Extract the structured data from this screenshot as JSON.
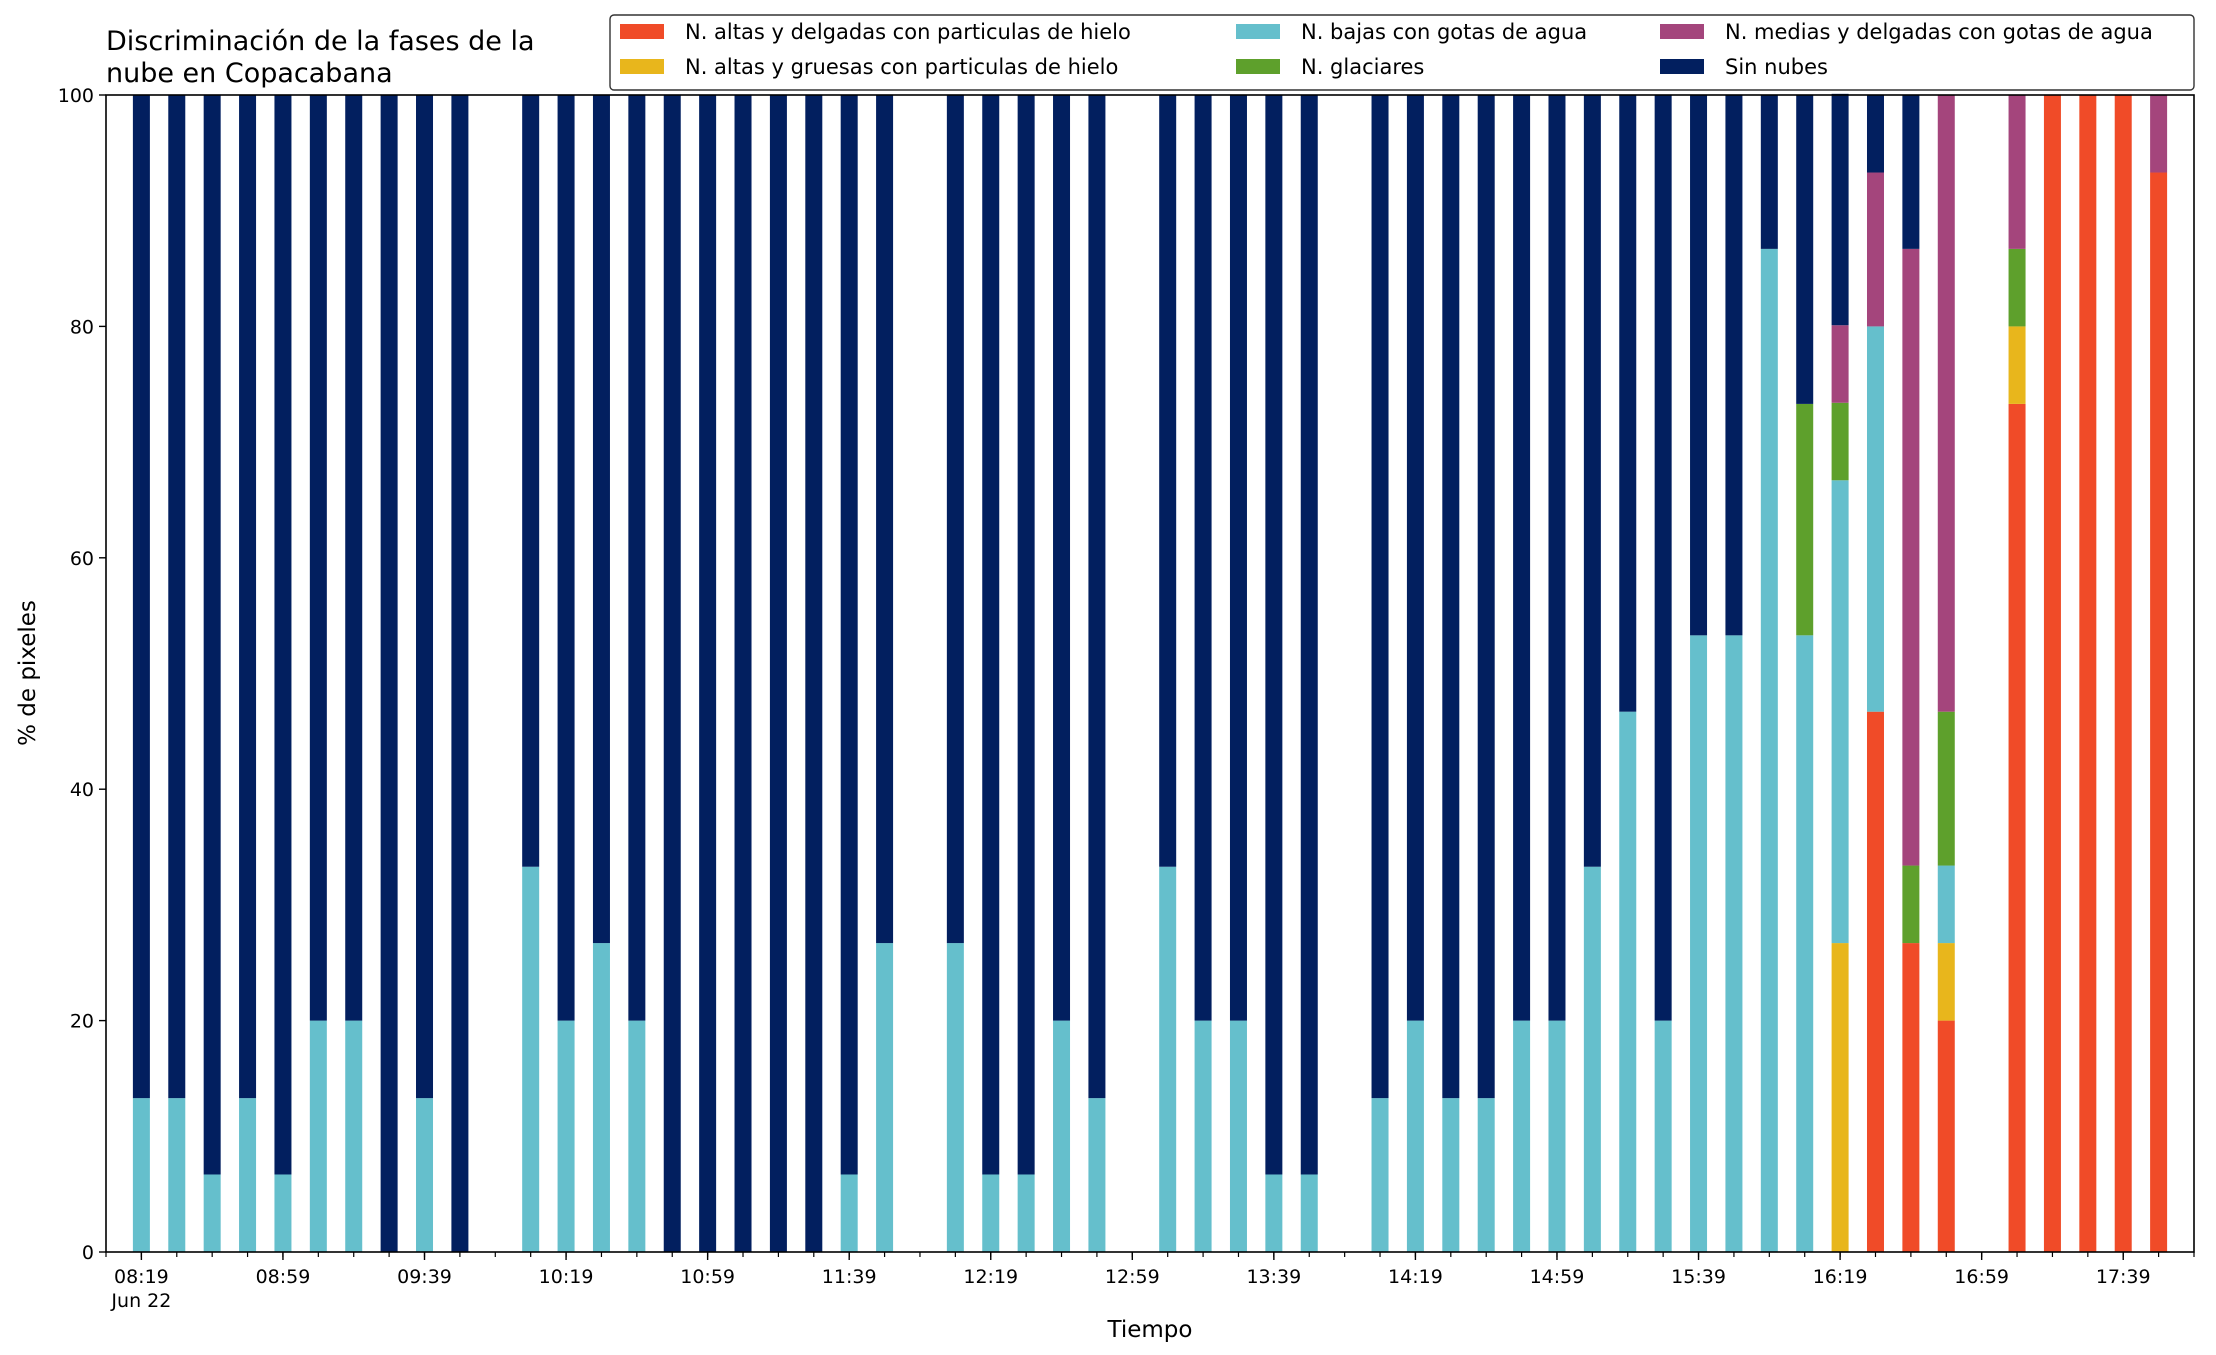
{
  "chart_data": {
    "type": "bar",
    "stacked": true,
    "title": "Discriminación de la fases de la\nnube en Copacabana",
    "xlabel": "Tiempo",
    "ylabel": "% de pixeles",
    "ylim": [
      0,
      100
    ],
    "yticks": [
      0,
      20,
      40,
      60,
      80,
      100
    ],
    "xlim": [
      "08:09",
      "17:59"
    ],
    "x_tick_labels": [
      {
        "time": "08:19",
        "label": "08:19",
        "sublabel": "Jun 22"
      },
      {
        "time": "08:59",
        "label": "08:59"
      },
      {
        "time": "09:39",
        "label": "09:39"
      },
      {
        "time": "10:19",
        "label": "10:19"
      },
      {
        "time": "10:59",
        "label": "10:59"
      },
      {
        "time": "11:39",
        "label": "11:39"
      },
      {
        "time": "12:19",
        "label": "12:19"
      },
      {
        "time": "12:59",
        "label": "12:59"
      },
      {
        "time": "13:39",
        "label": "13:39"
      },
      {
        "time": "14:19",
        "label": "14:19"
      },
      {
        "time": "14:59",
        "label": "14:59"
      },
      {
        "time": "15:39",
        "label": "15:39"
      },
      {
        "time": "16:19",
        "label": "16:19"
      },
      {
        "time": "16:59",
        "label": "16:59"
      },
      {
        "time": "17:39",
        "label": "17:39"
      }
    ],
    "minor_tick_minutes": 10,
    "legend": {
      "placement": "top-right",
      "columns": 3,
      "order": [
        "ice_thin",
        "ice_thick",
        "low_water",
        "glacier",
        "mid_water",
        "clear"
      ]
    },
    "series": [
      {
        "key": "ice_thin",
        "name": "N. altas y delgadas con particulas de hielo",
        "color": "#f04b28"
      },
      {
        "key": "ice_thick",
        "name": "N. altas y gruesas con particulas de hielo",
        "color": "#e8b61c"
      },
      {
        "key": "low_water",
        "name": "N. bajas con gotas de agua",
        "color": "#65bfcc"
      },
      {
        "key": "glacier",
        "name": "N. glaciares",
        "color": "#5ea02c"
      },
      {
        "key": "mid_water",
        "name": "N. medias y delgadas con gotas de agua",
        "color": "#a4457c"
      },
      {
        "key": "clear",
        "name": "Sin nubes",
        "color": "#021f5f"
      }
    ],
    "stack_order": [
      "ice_thin",
      "ice_thick",
      "low_water",
      "glacier",
      "mid_water",
      "clear"
    ],
    "bars": [
      {
        "time": "08:19",
        "low_water": 13.3,
        "clear": 86.7
      },
      {
        "time": "08:29",
        "low_water": 13.3,
        "clear": 86.7
      },
      {
        "time": "08:39",
        "low_water": 6.7,
        "clear": 93.3
      },
      {
        "time": "08:49",
        "low_water": 13.3,
        "clear": 86.7
      },
      {
        "time": "08:59",
        "low_water": 6.7,
        "clear": 93.3
      },
      {
        "time": "09:09",
        "low_water": 20,
        "clear": 80
      },
      {
        "time": "09:19",
        "low_water": 20,
        "clear": 80
      },
      {
        "time": "09:29",
        "clear": 100
      },
      {
        "time": "09:39",
        "low_water": 13.3,
        "clear": 86.7
      },
      {
        "time": "09:49",
        "clear": 100
      },
      {
        "time": "10:09",
        "low_water": 33.3,
        "clear": 66.7
      },
      {
        "time": "10:19",
        "low_water": 20,
        "clear": 80
      },
      {
        "time": "10:29",
        "low_water": 26.7,
        "clear": 73.3
      },
      {
        "time": "10:39",
        "low_water": 20,
        "clear": 80
      },
      {
        "time": "10:49",
        "clear": 100
      },
      {
        "time": "10:59",
        "clear": 100
      },
      {
        "time": "11:09",
        "clear": 100
      },
      {
        "time": "11:19",
        "clear": 100
      },
      {
        "time": "11:29",
        "clear": 100
      },
      {
        "time": "11:39",
        "low_water": 6.7,
        "clear": 93.3
      },
      {
        "time": "11:49",
        "low_water": 26.7,
        "clear": 73.3
      },
      {
        "time": "12:09",
        "low_water": 26.7,
        "clear": 73.3
      },
      {
        "time": "12:19",
        "low_water": 6.7,
        "clear": 93.3
      },
      {
        "time": "12:29",
        "low_water": 6.7,
        "clear": 93.3
      },
      {
        "time": "12:39",
        "low_water": 20,
        "clear": 80
      },
      {
        "time": "12:49",
        "low_water": 13.3,
        "clear": 86.7
      },
      {
        "time": "13:09",
        "low_water": 33.3,
        "clear": 66.7
      },
      {
        "time": "13:19",
        "low_water": 20,
        "clear": 80
      },
      {
        "time": "13:29",
        "low_water": 20,
        "clear": 80
      },
      {
        "time": "13:39",
        "low_water": 6.7,
        "clear": 93.3
      },
      {
        "time": "13:49",
        "low_water": 6.7,
        "clear": 93.3
      },
      {
        "time": "14:09",
        "low_water": 13.3,
        "clear": 86.7
      },
      {
        "time": "14:19",
        "low_water": 20,
        "clear": 80
      },
      {
        "time": "14:29",
        "low_water": 13.3,
        "clear": 86.7
      },
      {
        "time": "14:39",
        "low_water": 13.3,
        "clear": 86.7
      },
      {
        "time": "14:49",
        "low_water": 20,
        "clear": 80
      },
      {
        "time": "14:59",
        "low_water": 20,
        "clear": 80
      },
      {
        "time": "15:09",
        "low_water": 33.3,
        "clear": 66.7
      },
      {
        "time": "15:19",
        "low_water": 46.7,
        "clear": 53.3
      },
      {
        "time": "15:29",
        "low_water": 20,
        "clear": 80
      },
      {
        "time": "15:39",
        "low_water": 53.3,
        "clear": 46.7
      },
      {
        "time": "15:49",
        "low_water": 53.3,
        "clear": 46.7
      },
      {
        "time": "15:59",
        "low_water": 86.7,
        "clear": 13.3
      },
      {
        "time": "16:09",
        "low_water": 53.3,
        "glacier": 20,
        "clear": 26.7
      },
      {
        "time": "16:19",
        "ice_thick": 26.7,
        "low_water": 40,
        "glacier": 6.7,
        "mid_water": 6.7,
        "clear": 20
      },
      {
        "time": "16:29",
        "ice_thin": 46.7,
        "low_water": 33.3,
        "mid_water": 13.3,
        "clear": 6.7
      },
      {
        "time": "16:39",
        "ice_thin": 26.7,
        "glacier": 6.7,
        "mid_water": 53.3,
        "clear": 13.3
      },
      {
        "time": "16:49",
        "ice_thin": 20,
        "ice_thick": 6.7,
        "low_water": 6.7,
        "glacier": 13.3,
        "mid_water": 53.3
      },
      {
        "time": "17:09",
        "ice_thin": 73.3,
        "ice_thick": 6.7,
        "glacier": 6.7,
        "mid_water": 13.3
      },
      {
        "time": "17:19",
        "ice_thin": 100
      },
      {
        "time": "17:29",
        "ice_thin": 100
      },
      {
        "time": "17:39",
        "ice_thin": 100
      },
      {
        "time": "17:49",
        "ice_thin": 93.3,
        "mid_water": 6.7
      }
    ]
  }
}
